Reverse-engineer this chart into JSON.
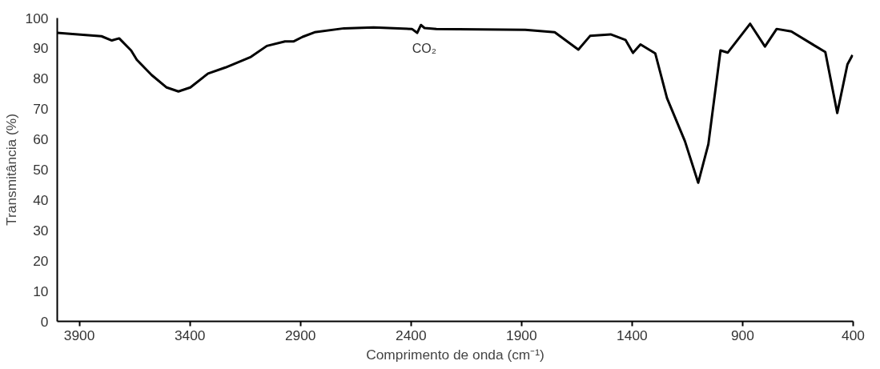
{
  "chart_data": {
    "type": "line",
    "xlabel": "Comprimento de onda (cm⁻¹)",
    "ylabel": "Transmitância (%)",
    "x": [
      4000,
      3907,
      3800,
      3753,
      3720,
      3666,
      3640,
      3573,
      3505,
      3452,
      3398,
      3318,
      3239,
      3124,
      3052,
      2970,
      2930,
      2890,
      2836,
      2703,
      2569,
      2396,
      2372,
      2355,
      2339,
      2285,
      1883,
      1750,
      1643,
      1590,
      1497,
      1430,
      1396,
      1362,
      1295,
      1242,
      1161,
      1101,
      1055,
      1000,
      967,
      866,
      799,
      746,
      680,
      572,
      526,
      472,
      426,
      403
    ],
    "series": [
      {
        "color": "#000000",
        "values": [
          95.1,
          94.6,
          94.0,
          92.6,
          93.3,
          89.3,
          86.2,
          81.2,
          77.1,
          75.8,
          77.1,
          81.7,
          83.7,
          87.2,
          90.8,
          92.3,
          92.3,
          93.8,
          95.3,
          96.6,
          96.9,
          96.4,
          95.1,
          97.7,
          96.7,
          96.4,
          96.1,
          95.3,
          89.6,
          94.1,
          94.6,
          92.8,
          88.5,
          91.3,
          88.3,
          73.6,
          59.4,
          45.7,
          58.4,
          89.3,
          88.6,
          98.1,
          90.6,
          96.4,
          95.6,
          90.8,
          88.8,
          68.7,
          84.7,
          87.8
        ]
      }
    ],
    "xlim": [
      4000,
      400
    ],
    "xticks": [
      3900,
      3400,
      2900,
      2400,
      1900,
      1400,
      900,
      400
    ],
    "ylim": [
      0,
      100
    ],
    "yticks": [
      0,
      10,
      20,
      30,
      40,
      50,
      60,
      70,
      80,
      90,
      100
    ],
    "grid": false,
    "marker": "none",
    "line_style": "solid",
    "annotations": [
      "CO₂"
    ]
  }
}
